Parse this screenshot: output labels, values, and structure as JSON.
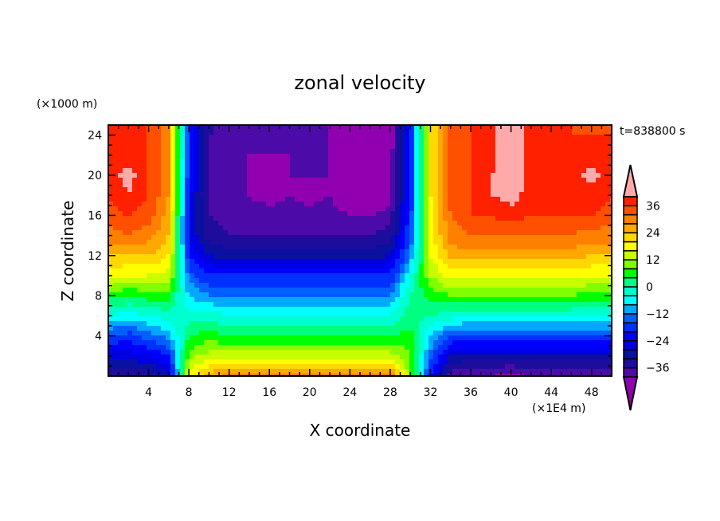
{
  "chart_data": {
    "type": "heatmap",
    "title": "zonal velocity",
    "xlabel": "X coordinate",
    "ylabel": "Z coordinate",
    "x_units": "(×1E4 m)",
    "y_units": "(×1000 m)",
    "time_label": "t=838800 s",
    "xlim": [
      0,
      50
    ],
    "ylim": [
      0,
      25
    ],
    "x_ticks": [
      4,
      8,
      12,
      16,
      20,
      24,
      28,
      32,
      36,
      40,
      44,
      48
    ],
    "y_ticks": [
      4,
      8,
      12,
      16,
      20,
      24
    ],
    "x_grid": [
      0,
      2,
      4,
      6,
      8,
      10,
      12,
      14,
      16,
      18,
      20,
      22,
      24,
      26,
      28,
      30,
      32,
      34,
      36,
      38,
      40,
      42,
      44,
      46,
      48,
      50
    ],
    "z_grid": [
      24,
      22,
      20,
      18,
      16,
      14,
      12,
      10,
      8,
      6,
      4,
      2,
      0
    ],
    "values": [
      [
        36,
        38,
        36,
        30,
        -20,
        -36,
        -38,
        -40,
        -38,
        -38,
        -40,
        -40,
        -44,
        -44,
        -44,
        -20,
        20,
        34,
        36,
        38,
        44,
        38,
        36,
        36,
        36,
        36
      ],
      [
        36,
        38,
        36,
        30,
        -20,
        -38,
        -38,
        -40,
        -40,
        -40,
        -40,
        -40,
        -44,
        -44,
        -42,
        -20,
        20,
        34,
        36,
        38,
        44,
        38,
        36,
        36,
        38,
        36
      ],
      [
        38,
        42,
        36,
        28,
        -20,
        -38,
        -40,
        -40,
        -42,
        -40,
        -40,
        -40,
        -44,
        -44,
        -42,
        -20,
        20,
        34,
        36,
        40,
        44,
        38,
        36,
        38,
        42,
        36
      ],
      [
        36,
        40,
        36,
        28,
        -22,
        -38,
        -40,
        -40,
        -42,
        -40,
        -42,
        -40,
        -44,
        -44,
        -42,
        -20,
        20,
        34,
        36,
        40,
        42,
        38,
        36,
        36,
        38,
        36
      ],
      [
        34,
        36,
        34,
        26,
        -24,
        -36,
        -38,
        -38,
        -38,
        -38,
        -38,
        -38,
        -40,
        -40,
        -38,
        -18,
        18,
        32,
        36,
        36,
        38,
        36,
        36,
        36,
        36,
        34
      ],
      [
        30,
        32,
        30,
        24,
        -24,
        -34,
        -36,
        -36,
        -36,
        -36,
        -36,
        -36,
        -36,
        -36,
        -34,
        -16,
        18,
        30,
        32,
        32,
        32,
        32,
        32,
        32,
        30,
        30
      ],
      [
        24,
        24,
        24,
        20,
        -20,
        -28,
        -30,
        -30,
        -30,
        -30,
        -30,
        -30,
        -30,
        -30,
        -28,
        -12,
        16,
        26,
        26,
        26,
        26,
        26,
        26,
        26,
        24,
        24
      ],
      [
        18,
        16,
        16,
        14,
        -14,
        -20,
        -20,
        -20,
        -20,
        -20,
        -20,
        -20,
        -20,
        -20,
        -20,
        -4,
        12,
        18,
        18,
        18,
        18,
        18,
        18,
        18,
        16,
        16
      ],
      [
        6,
        4,
        6,
        6,
        -8,
        -12,
        -12,
        -12,
        -12,
        -12,
        -12,
        -12,
        -12,
        -12,
        -12,
        0,
        6,
        8,
        8,
        8,
        8,
        8,
        8,
        8,
        6,
        6
      ],
      [
        -4,
        -6,
        -4,
        -2,
        -2,
        -2,
        -4,
        -4,
        -4,
        -4,
        -4,
        -4,
        -4,
        -4,
        -4,
        2,
        0,
        -2,
        -4,
        -4,
        -4,
        -4,
        -4,
        -4,
        -4,
        -4
      ],
      [
        -16,
        -18,
        -14,
        -10,
        4,
        6,
        4,
        4,
        4,
        4,
        4,
        4,
        4,
        4,
        4,
        6,
        -8,
        -16,
        -16,
        -16,
        -16,
        -16,
        -16,
        -16,
        -16,
        -16
      ],
      [
        -26,
        -26,
        -24,
        -20,
        10,
        14,
        14,
        14,
        14,
        14,
        14,
        14,
        14,
        14,
        14,
        8,
        -14,
        -28,
        -30,
        -30,
        -30,
        -30,
        -30,
        -30,
        -30,
        -30
      ],
      [
        -34,
        -36,
        -34,
        -30,
        18,
        26,
        30,
        32,
        32,
        32,
        32,
        32,
        32,
        32,
        32,
        10,
        -20,
        -38,
        -40,
        -40,
        -42,
        -40,
        -40,
        -40,
        -38,
        -38
      ]
    ],
    "colorbar": {
      "levels": [
        -40,
        -36,
        -32,
        -28,
        -24,
        -20,
        -16,
        -12,
        -8,
        -4,
        0,
        4,
        8,
        12,
        16,
        20,
        24,
        28,
        32,
        36,
        40
      ],
      "tick_labels": [
        "36",
        "24",
        "12",
        "0",
        "−12",
        "−24",
        "−36"
      ],
      "tick_values": [
        36,
        24,
        12,
        0,
        -12,
        -24,
        -36
      ],
      "colors": [
        "#4c0aa8",
        "#1e0c9c",
        "#0a10a0",
        "#0000e0",
        "#0000ff",
        "#0030ff",
        "#0060ff",
        "#00a8ff",
        "#00ffff",
        "#00ffd0",
        "#00ff80",
        "#00ff00",
        "#80ff00",
        "#c8ff00",
        "#ffff00",
        "#ffd800",
        "#ffa800",
        "#ff8000",
        "#ff5000",
        "#ff2000",
        "#ff3030"
      ],
      "under_color": "#9000b0",
      "over_color": "#ffaaaa"
    }
  }
}
